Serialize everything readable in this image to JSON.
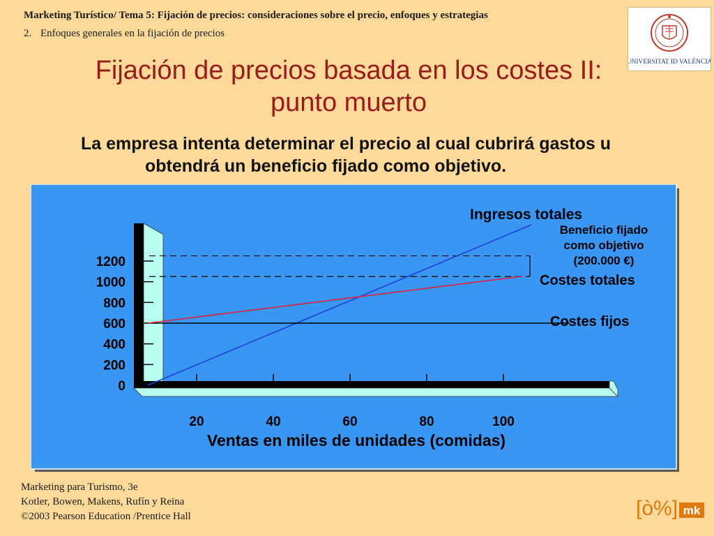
{
  "header": {
    "course_line": "Marketing Turístico/ Tema 5: Fijación de precios: consideraciones sobre el precio, enfoques y estrategias",
    "section_number": "2.",
    "section_title": "Enfoques generales en la fijación de precios"
  },
  "university_logo": {
    "text": "UNIVERSITAT ID VALÈNCIA",
    "colors": {
      "seal": "#C0392B",
      "text": "#1F3A75"
    }
  },
  "slide": {
    "title_line1": "Fijación de precios basada en los costes II:",
    "title_line2": "punto muerto",
    "intro_line1": "La empresa intenta determinar el precio al cual cubrirá gastos u",
    "intro_line2": "obtendrá un beneficio fijado como objetivo."
  },
  "chart_data": {
    "type": "line",
    "title": "",
    "xlabel": "Ventas en miles de unidades (comidas)",
    "ylabel": "",
    "x_ticks": [
      "20",
      "40",
      "60",
      "80",
      "100"
    ],
    "y_ticks": [
      "0",
      "200",
      "400",
      "600",
      "800",
      "1000",
      "1200"
    ],
    "xlim": [
      0,
      100
    ],
    "ylim": [
      0,
      1200
    ],
    "series": [
      {
        "name": "Ingresos totales",
        "color": "#1E3FD8",
        "x": [
          0,
          100
        ],
        "y": [
          0,
          1550
        ]
      },
      {
        "name": "Costes totales",
        "color": "#E0203C",
        "x": [
          0,
          100
        ],
        "y": [
          600,
          1050
        ]
      },
      {
        "name": "Costes fijos",
        "color": "#000000",
        "x": [
          0,
          100
        ],
        "y": [
          600,
          600
        ]
      }
    ],
    "annotation": {
      "line1": "Beneficio fijado",
      "line2": "como objetivo",
      "line3": "(200.000 €)",
      "y_range": [
        1050,
        1250
      ]
    },
    "colors": {
      "panel": "#3A96F3",
      "axis_face": "#B8FFF0",
      "axis_dark": "#000000"
    }
  },
  "footer": {
    "book": "Marketing para Turismo, 3e",
    "authors": "Kotler, Bowen, Makens, Rufín y Reina",
    "copyright": "©2003 Pearson Education /Prentice Hall"
  },
  "mk_logo": {
    "glyph": "[ò%]",
    "badge": "mk",
    "color": "#E07A10"
  }
}
